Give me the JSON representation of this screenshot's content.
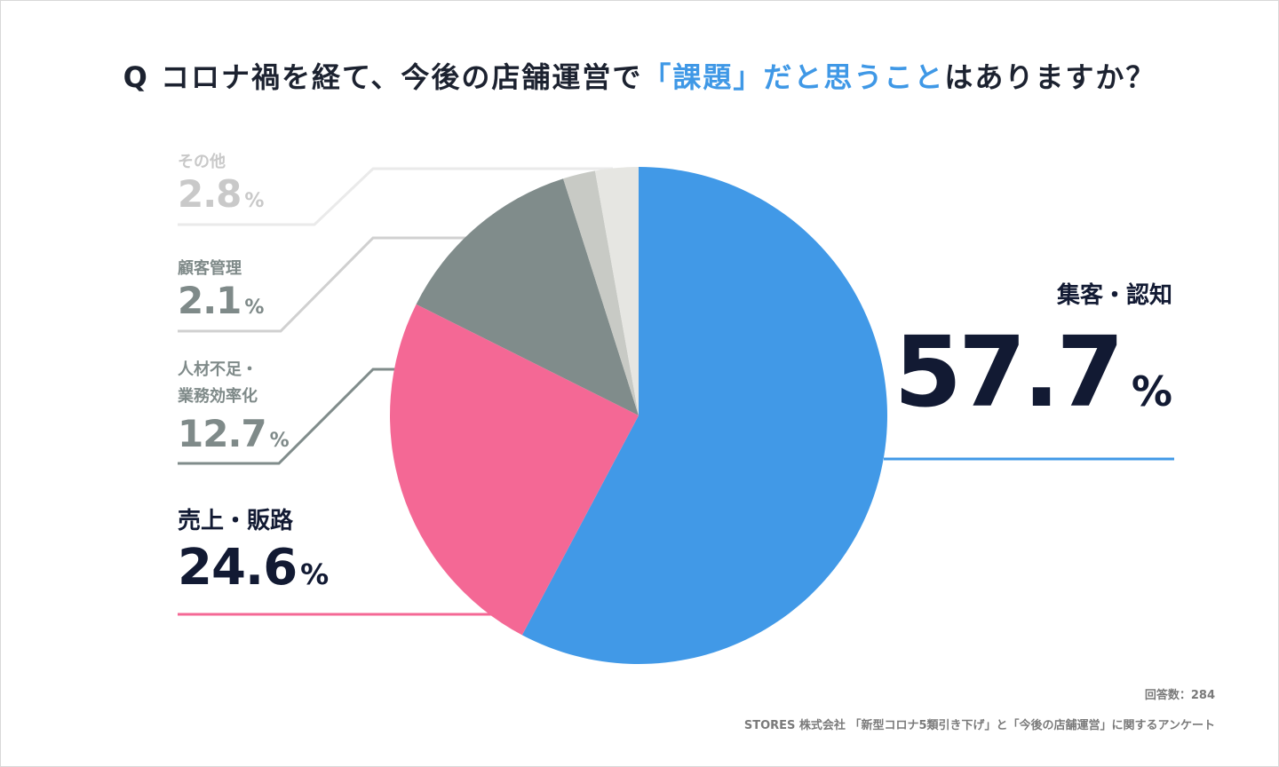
{
  "title": {
    "prefix": "Q コロナ禍を経て、今後の店舗運営で",
    "highlight": "「課題」だと思うこと",
    "suffix": "はありますか？"
  },
  "colors": {
    "acquisition": "#4199e7",
    "sales": "#f46895",
    "hr": "#808c8b",
    "customer": "#c8cac5",
    "other": "#e6e6e2",
    "title_highlight": "#3f98e6"
  },
  "chart_data": {
    "type": "pie",
    "title": "Q コロナ禍を経て、今後の店舗運営で「課題」だと思うことはありますか？",
    "start": "12 o'clock, clockwise",
    "slices": [
      {
        "key": "acquisition",
        "label": "集客・認知",
        "value": 57.7,
        "display": "57.7",
        "unit": "%"
      },
      {
        "key": "sales",
        "label": "売上・販路",
        "value": 24.6,
        "display": "24.6",
        "unit": "%"
      },
      {
        "key": "hr",
        "label_line1": "人材不足・",
        "label_line2": "業務効率化",
        "value": 12.7,
        "display": "12.7",
        "unit": "%"
      },
      {
        "key": "customer",
        "label": "顧客管理",
        "value": 2.1,
        "display": "2.1",
        "unit": "%"
      },
      {
        "key": "other",
        "label": "その他",
        "value": 2.8,
        "display": "2.8",
        "unit": "%"
      }
    ]
  },
  "footer": {
    "respondents": "回答数：284",
    "source": "STORES 株式会社 「新型コロナ5類引き下げ」と「今後の店舗運営」に関するアンケート"
  }
}
